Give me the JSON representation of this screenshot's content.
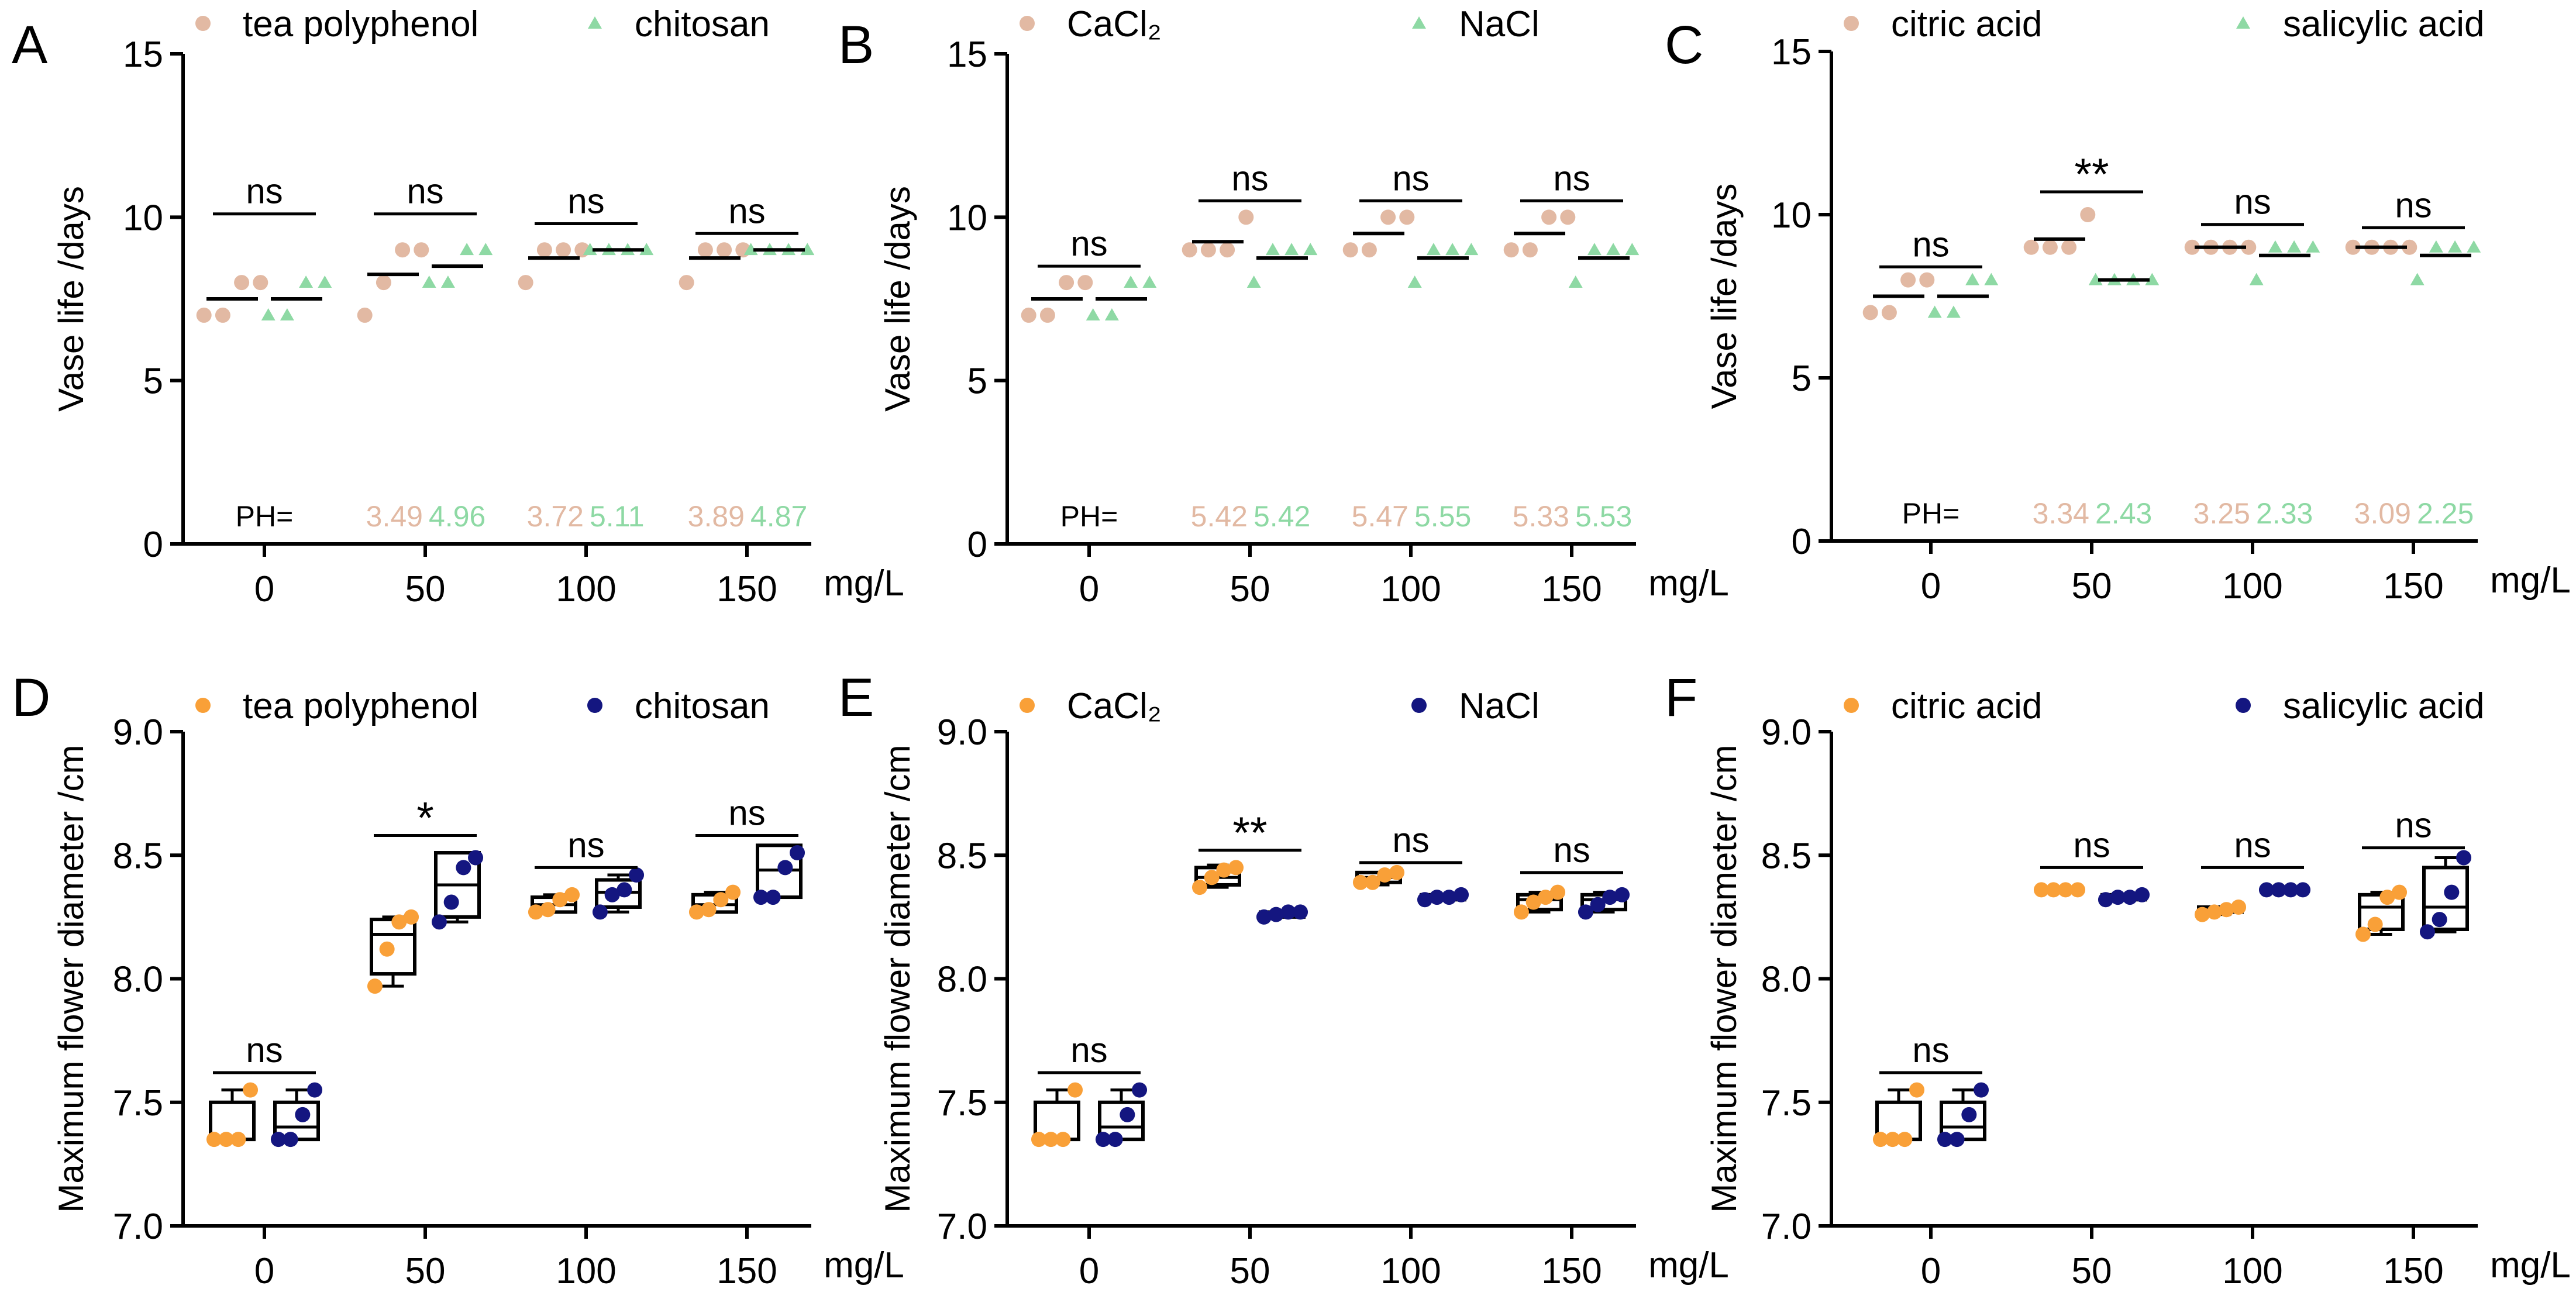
{
  "figure": {
    "x_unit": "mg/L",
    "ph_label": "PH=",
    "top_ylabel": "Vase life /days",
    "bottom_ylabel": "Maximum flower diameter /cm"
  },
  "colors": {
    "top_a": "#E2B9A3",
    "top_b": "#8ED9A4",
    "bottom_a": "#F9A038",
    "bottom_b": "#141680",
    "axis": "#000000"
  },
  "chart_data": [
    {
      "panel": "A",
      "type": "scatter",
      "xlabel": "mg/L",
      "ylabel": "Vase life /days",
      "ylim": [
        0,
        15
      ],
      "yticks": [
        0,
        5,
        10,
        15
      ],
      "categories": [
        "0",
        "50",
        "100",
        "150"
      ],
      "legend": [
        "tea polyphenol",
        "chitosan"
      ],
      "series": [
        {
          "name": "tea polyphenol",
          "marker": "circle",
          "points": [
            [
              7,
              7,
              8,
              8
            ],
            [
              7,
              8,
              9,
              9
            ],
            [
              8,
              9,
              9,
              9
            ],
            [
              8,
              9,
              9,
              9
            ]
          ],
          "means": [
            7.5,
            8.25,
            8.75,
            8.75
          ]
        },
        {
          "name": "chitosan",
          "marker": "triangle",
          "points": [
            [
              7,
              7,
              8,
              8
            ],
            [
              8,
              8,
              9,
              9
            ],
            [
              9,
              9,
              9,
              9
            ],
            [
              9,
              9,
              9,
              9
            ]
          ],
          "means": [
            7.5,
            8.5,
            9.0,
            9.0
          ]
        }
      ],
      "significance": [
        "ns",
        "ns",
        "ns",
        "ns"
      ],
      "sig_heights": [
        10.1,
        10.1,
        9.8,
        9.5
      ],
      "ph": {
        "label": "PH=",
        "a": [
          "",
          "3.49",
          "3.72",
          "3.89"
        ],
        "b": [
          "",
          "4.96",
          "5.11",
          "4.87"
        ]
      }
    },
    {
      "panel": "B",
      "type": "scatter",
      "xlabel": "mg/L",
      "ylabel": "Vase life /days",
      "ylim": [
        0,
        15
      ],
      "yticks": [
        0,
        5,
        10,
        15
      ],
      "categories": [
        "0",
        "50",
        "100",
        "150"
      ],
      "legend": [
        "CaCl₂",
        "NaCl"
      ],
      "series": [
        {
          "name": "CaCl₂",
          "marker": "circle",
          "points": [
            [
              7,
              7,
              8,
              8
            ],
            [
              9,
              9,
              9,
              10
            ],
            [
              9,
              9,
              10,
              10
            ],
            [
              9,
              9,
              10,
              10
            ]
          ],
          "means": [
            7.5,
            9.25,
            9.5,
            9.5
          ]
        },
        {
          "name": "NaCl",
          "marker": "triangle",
          "points": [
            [
              7,
              7,
              8,
              8
            ],
            [
              8,
              9,
              9,
              9
            ],
            [
              8,
              9,
              9,
              9
            ],
            [
              8,
              9,
              9,
              9
            ]
          ],
          "means": [
            7.5,
            8.75,
            8.75,
            8.75
          ]
        }
      ],
      "significance": [
        "ns",
        "ns",
        "ns",
        "ns"
      ],
      "sig_heights": [
        8.5,
        10.5,
        10.5,
        10.5
      ],
      "ph": {
        "label": "PH=",
        "a": [
          "",
          "5.42",
          "5.47",
          "5.33"
        ],
        "b": [
          "",
          "5.42",
          "5.55",
          "5.53"
        ]
      }
    },
    {
      "panel": "C",
      "type": "scatter",
      "xlabel": "mg/L",
      "ylabel": "Vase life /days",
      "ylim": [
        0,
        15
      ],
      "yticks": [
        0,
        5,
        10,
        15
      ],
      "categories": [
        "0",
        "50",
        "100",
        "150"
      ],
      "legend": [
        "citric acid",
        "salicylic acid"
      ],
      "series": [
        {
          "name": "citric acid",
          "marker": "circle",
          "points": [
            [
              7,
              7,
              8,
              8
            ],
            [
              9,
              9,
              9,
              10
            ],
            [
              9,
              9,
              9,
              9
            ],
            [
              9,
              9,
              9,
              9
            ]
          ],
          "means": [
            7.5,
            9.25,
            9.0,
            9.0
          ]
        },
        {
          "name": "salicylic acid",
          "marker": "triangle",
          "points": [
            [
              7,
              7,
              8,
              8
            ],
            [
              8,
              8,
              8,
              8
            ],
            [
              8,
              9,
              9,
              9
            ],
            [
              8,
              9,
              9,
              9
            ]
          ],
          "means": [
            7.5,
            8.0,
            8.75,
            8.75
          ]
        }
      ],
      "significance": [
        "ns",
        "**",
        "ns",
        "ns"
      ],
      "sig_heights": [
        8.4,
        10.7,
        9.7,
        9.6
      ],
      "ph": {
        "label": "PH=",
        "a": [
          "",
          "3.34",
          "3.25",
          "3.09"
        ],
        "b": [
          "",
          "2.43",
          "2.33",
          "2.25"
        ]
      }
    },
    {
      "panel": "D",
      "type": "box",
      "xlabel": "mg/L",
      "ylabel": "Maximum flower diameter /cm",
      "ylim": [
        7.0,
        9.0
      ],
      "yticks": [
        "7.0",
        "7.5",
        "8.0",
        "8.5",
        "9.0"
      ],
      "categories": [
        "0",
        "50",
        "100",
        "150"
      ],
      "legend": [
        "tea polyphenol",
        "chitosan"
      ],
      "series": [
        {
          "name": "tea polyphenol",
          "marker": "circle",
          "points": [
            [
              7.35,
              7.35,
              7.35,
              7.55
            ],
            [
              7.97,
              8.12,
              8.23,
              8.25
            ],
            [
              8.27,
              8.28,
              8.32,
              8.34
            ],
            [
              8.27,
              8.28,
              8.32,
              8.35
            ]
          ],
          "boxes": [
            [
              7.35,
              7.35,
              7.35,
              7.5,
              7.55
            ],
            [
              7.97,
              8.02,
              8.18,
              8.24,
              8.25
            ],
            [
              8.27,
              8.27,
              8.3,
              8.33,
              8.34
            ],
            [
              8.27,
              8.27,
              8.3,
              8.34,
              8.35
            ]
          ]
        },
        {
          "name": "chitosan",
          "marker": "circle",
          "points": [
            [
              7.35,
              7.35,
              7.45,
              7.55
            ],
            [
              8.23,
              8.31,
              8.45,
              8.49
            ],
            [
              8.27,
              8.34,
              8.36,
              8.42
            ],
            [
              8.33,
              8.33,
              8.45,
              8.51
            ]
          ],
          "boxes": [
            [
              7.35,
              7.35,
              7.4,
              7.5,
              7.55
            ],
            [
              8.23,
              8.25,
              8.38,
              8.51,
              8.51
            ],
            [
              8.27,
              8.29,
              8.35,
              8.4,
              8.42
            ],
            [
              8.33,
              8.33,
              8.44,
              8.54,
              8.54
            ]
          ]
        }
      ],
      "significance": [
        "ns",
        "*",
        "ns",
        "ns"
      ],
      "sig_heights": [
        7.62,
        8.58,
        8.45,
        8.58
      ]
    },
    {
      "panel": "E",
      "type": "box",
      "xlabel": "mg/L",
      "ylabel": "Maximum flower diameter /cm",
      "ylim": [
        7.0,
        9.0
      ],
      "yticks": [
        "7.0",
        "7.5",
        "8.0",
        "8.5",
        "9.0"
      ],
      "categories": [
        "0",
        "50",
        "100",
        "150"
      ],
      "legend": [
        "CaCl₂",
        "NaCl"
      ],
      "series": [
        {
          "name": "CaCl₂",
          "marker": "circle",
          "points": [
            [
              7.35,
              7.35,
              7.35,
              7.55
            ],
            [
              8.37,
              8.41,
              8.44,
              8.45
            ],
            [
              8.39,
              8.39,
              8.42,
              8.43
            ],
            [
              8.27,
              8.31,
              8.33,
              8.35
            ]
          ],
          "boxes": [
            [
              7.35,
              7.35,
              7.35,
              7.5,
              7.55
            ],
            [
              8.37,
              8.38,
              8.41,
              8.45,
              8.46
            ],
            [
              8.38,
              8.39,
              8.41,
              8.43,
              8.43
            ],
            [
              8.27,
              8.28,
              8.32,
              8.34,
              8.35
            ]
          ]
        },
        {
          "name": "NaCl",
          "marker": "circle",
          "points": [
            [
              7.35,
              7.35,
              7.45,
              7.55
            ],
            [
              8.25,
              8.26,
              8.27,
              8.27
            ],
            [
              8.32,
              8.33,
              8.33,
              8.34
            ],
            [
              8.27,
              8.3,
              8.33,
              8.34
            ]
          ],
          "boxes": [
            [
              7.35,
              7.35,
              7.4,
              7.5,
              7.55
            ],
            [
              8.25,
              8.25,
              8.26,
              8.27,
              8.27
            ],
            [
              8.32,
              8.32,
              8.33,
              8.34,
              8.34
            ],
            [
              8.27,
              8.28,
              8.32,
              8.34,
              8.35
            ]
          ]
        }
      ],
      "significance": [
        "ns",
        "**",
        "ns",
        "ns"
      ],
      "sig_heights": [
        7.62,
        8.52,
        8.47,
        8.43
      ]
    },
    {
      "panel": "F",
      "type": "box",
      "xlabel": "mg/L",
      "ylabel": "Maximum flower diameter /cm",
      "ylim": [
        7.0,
        9.0
      ],
      "yticks": [
        "7.0",
        "7.5",
        "8.0",
        "8.5",
        "9.0"
      ],
      "categories": [
        "0",
        "50",
        "100",
        "150"
      ],
      "legend": [
        "citric acid",
        "salicylic acid"
      ],
      "series": [
        {
          "name": "citric acid",
          "marker": "circle",
          "points": [
            [
              7.35,
              7.35,
              7.35,
              7.55
            ],
            [
              8.36,
              8.36,
              8.36,
              8.36
            ],
            [
              8.26,
              8.27,
              8.28,
              8.29
            ],
            [
              8.18,
              8.22,
              8.33,
              8.35
            ]
          ],
          "boxes": [
            [
              7.35,
              7.35,
              7.35,
              7.5,
              7.55
            ],
            [
              8.36,
              8.36,
              8.36,
              8.36,
              8.36
            ],
            [
              8.26,
              8.27,
              8.28,
              8.29,
              8.29
            ],
            [
              8.18,
              8.2,
              8.29,
              8.34,
              8.35
            ]
          ]
        },
        {
          "name": "salicylic acid",
          "marker": "circle",
          "points": [
            [
              7.35,
              7.35,
              7.45,
              7.55
            ],
            [
              8.32,
              8.33,
              8.33,
              8.34
            ],
            [
              8.36,
              8.36,
              8.36,
              8.36
            ],
            [
              8.19,
              8.24,
              8.35,
              8.49
            ]
          ],
          "boxes": [
            [
              7.35,
              7.35,
              7.4,
              7.5,
              7.55
            ],
            [
              8.32,
              8.32,
              8.33,
              8.34,
              8.34
            ],
            [
              8.36,
              8.36,
              8.36,
              8.36,
              8.36
            ],
            [
              8.19,
              8.2,
              8.29,
              8.45,
              8.49
            ]
          ]
        }
      ],
      "significance": [
        "ns",
        "ns",
        "ns",
        "ns"
      ],
      "sig_heights": [
        7.62,
        8.45,
        8.45,
        8.53
      ]
    }
  ]
}
